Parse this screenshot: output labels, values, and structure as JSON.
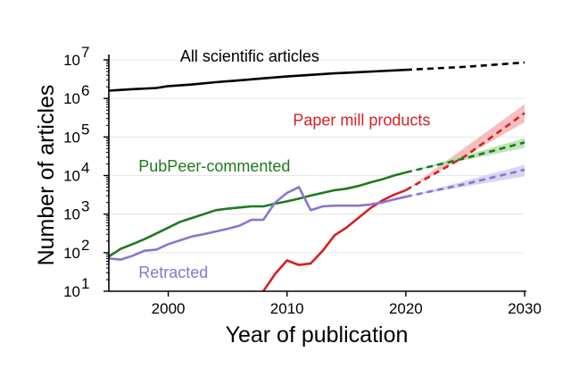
{
  "chart_data": {
    "type": "line",
    "xlabel": "Year of publication",
    "ylabel": "Number of articles",
    "xlim": [
      1995,
      2030
    ],
    "ylim_log10": [
      1,
      7
    ],
    "yscale": "log",
    "grid": "horizontal, light gray",
    "x_ticks": [
      {
        "value": 2000,
        "label": "2000"
      },
      {
        "value": 2010,
        "label": "2010"
      },
      {
        "value": 2020,
        "label": "2020"
      },
      {
        "value": 2030,
        "label": "2030"
      }
    ],
    "y_ticks": [
      {
        "exp": 1,
        "base": "10",
        "sup": "1"
      },
      {
        "exp": 2,
        "base": "10",
        "sup": "2"
      },
      {
        "exp": 3,
        "base": "10",
        "sup": "3"
      },
      {
        "exp": 4,
        "base": "10",
        "sup": "4"
      },
      {
        "exp": 5,
        "base": "10",
        "sup": "5"
      },
      {
        "exp": 6,
        "base": "10",
        "sup": "6"
      },
      {
        "exp": 7,
        "base": "10",
        "sup": "7"
      }
    ],
    "series": [
      {
        "name": "All scientific articles",
        "color": "#000000",
        "label_pos": [
          2001,
          6.95
        ],
        "values_log10": [
          [
            1995,
            6.2
          ],
          [
            1997,
            6.24
          ],
          [
            1999,
            6.27
          ],
          [
            2000,
            6.32
          ],
          [
            2002,
            6.36
          ],
          [
            2004,
            6.42
          ],
          [
            2006,
            6.47
          ],
          [
            2008,
            6.52
          ],
          [
            2010,
            6.57
          ],
          [
            2012,
            6.61
          ],
          [
            2014,
            6.65
          ],
          [
            2016,
            6.68
          ],
          [
            2018,
            6.71
          ],
          [
            2020,
            6.74
          ]
        ],
        "projection_log10": [
          [
            2020,
            6.74
          ],
          [
            2025,
            6.82
          ],
          [
            2030,
            6.93
          ]
        ],
        "band": null
      },
      {
        "name": "Paper mill products",
        "color": "#d62022",
        "label_pos": [
          2010.5,
          5.3
        ],
        "values_log10": [
          [
            2008,
            1.0
          ],
          [
            2009,
            1.45
          ],
          [
            2010,
            1.8
          ],
          [
            2011,
            1.68
          ],
          [
            2012,
            1.72
          ],
          [
            2013,
            2.05
          ],
          [
            2014,
            2.45
          ],
          [
            2015,
            2.65
          ],
          [
            2016,
            2.9
          ],
          [
            2017,
            3.15
          ],
          [
            2018,
            3.35
          ],
          [
            2019,
            3.5
          ],
          [
            2020,
            3.62
          ]
        ],
        "projection_log10": [
          [
            2020,
            3.62
          ],
          [
            2025,
            4.5
          ],
          [
            2030,
            5.62
          ]
        ],
        "band": {
          "color": "#f2a9a9",
          "upper_end": 5.85,
          "lower_end": 5.38
        }
      },
      {
        "name": "PubPeer-commented",
        "color": "#1e7a1e",
        "label_pos": [
          1997.5,
          4.1
        ],
        "values_log10": [
          [
            1995,
            1.9
          ],
          [
            1996,
            2.1
          ],
          [
            1997,
            2.22
          ],
          [
            1998,
            2.35
          ],
          [
            1999,
            2.5
          ],
          [
            2000,
            2.65
          ],
          [
            2001,
            2.8
          ],
          [
            2002,
            2.9
          ],
          [
            2003,
            3.0
          ],
          [
            2004,
            3.1
          ],
          [
            2005,
            3.14
          ],
          [
            2006,
            3.17
          ],
          [
            2007,
            3.2
          ],
          [
            2008,
            3.2
          ],
          [
            2009,
            3.27
          ],
          [
            2010,
            3.33
          ],
          [
            2011,
            3.4
          ],
          [
            2012,
            3.48
          ],
          [
            2013,
            3.55
          ],
          [
            2014,
            3.62
          ],
          [
            2015,
            3.66
          ],
          [
            2016,
            3.73
          ],
          [
            2017,
            3.82
          ],
          [
            2018,
            3.9
          ],
          [
            2019,
            4.0
          ],
          [
            2020,
            4.08
          ]
        ],
        "projection_log10": [
          [
            2020,
            4.08
          ],
          [
            2025,
            4.45
          ],
          [
            2030,
            4.86
          ]
        ],
        "band": {
          "color": "#a8dba0",
          "upper_end": 4.97,
          "lower_end": 4.72
        }
      },
      {
        "name": "Retracted",
        "color": "#8b74d0",
        "label_pos": [
          1997.5,
          1.35
        ],
        "values_log10": [
          [
            1995,
            1.85
          ],
          [
            1996,
            1.82
          ],
          [
            1997,
            1.92
          ],
          [
            1998,
            2.05
          ],
          [
            1999,
            2.08
          ],
          [
            2000,
            2.22
          ],
          [
            2001,
            2.32
          ],
          [
            2002,
            2.42
          ],
          [
            2003,
            2.48
          ],
          [
            2004,
            2.55
          ],
          [
            2005,
            2.62
          ],
          [
            2006,
            2.7
          ],
          [
            2007,
            2.85
          ],
          [
            2008,
            2.85
          ],
          [
            2009,
            3.3
          ],
          [
            2010,
            3.55
          ],
          [
            2011,
            3.7
          ],
          [
            2012,
            3.1
          ],
          [
            2013,
            3.2
          ],
          [
            2014,
            3.22
          ],
          [
            2015,
            3.22
          ],
          [
            2016,
            3.22
          ],
          [
            2017,
            3.25
          ],
          [
            2018,
            3.3
          ],
          [
            2019,
            3.38
          ],
          [
            2020,
            3.45
          ]
        ],
        "projection_log10": [
          [
            2020,
            3.45
          ],
          [
            2025,
            3.78
          ],
          [
            2030,
            4.15
          ]
        ],
        "band": {
          "color": "#cfc5ee",
          "upper_end": 4.28,
          "lower_end": 3.98
        }
      }
    ]
  }
}
